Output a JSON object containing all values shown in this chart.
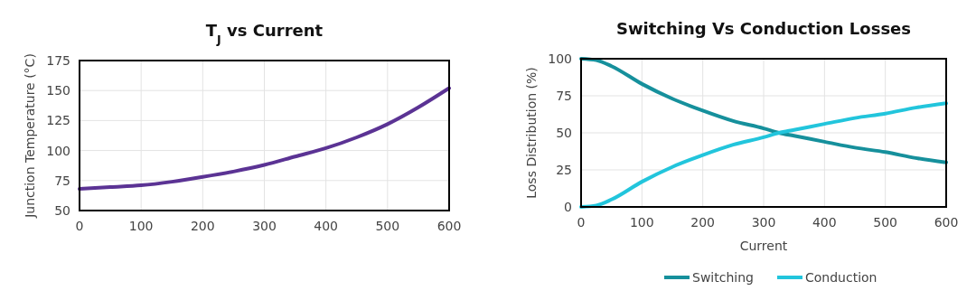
{
  "chart_data": [
    {
      "type": "line",
      "title": "T$_{J}$ vs Current",
      "ylabel": "Junction Temperature (°C)",
      "x": [
        0,
        50,
        100,
        150,
        200,
        250,
        300,
        350,
        400,
        450,
        500,
        550,
        600
      ],
      "series": [
        {
          "color": "#5b3394",
          "values": [
            68,
            69.5,
            71,
            74,
            78,
            82.5,
            88,
            95,
            102,
            111,
            122,
            136,
            152
          ]
        }
      ],
      "xlim": [
        0,
        600
      ],
      "xticks": [
        0,
        100,
        200,
        300,
        400,
        500,
        600
      ],
      "ylim": [
        50,
        175
      ],
      "yticks": [
        50,
        75,
        100,
        125,
        150,
        175
      ],
      "grid": true,
      "legend": false
    },
    {
      "type": "line",
      "title": "Switching Vs Conduction Losses",
      "xlabel": "Current",
      "ylabel": "Loss Distribution (%)",
      "x": [
        0,
        25,
        50,
        100,
        150,
        200,
        250,
        300,
        325,
        350,
        400,
        450,
        500,
        550,
        600
      ],
      "series": [
        {
          "name": "Switching",
          "color": "#16909c",
          "values": [
            100,
            99,
            95,
            83,
            73,
            65,
            58,
            53,
            50,
            48,
            44,
            40,
            37,
            33,
            30
          ]
        },
        {
          "name": "Conduction",
          "color": "#22c5dc",
          "values": [
            0,
            1,
            5,
            17,
            27,
            35,
            42,
            47,
            50,
            52,
            56,
            60,
            63,
            67,
            70
          ]
        }
      ],
      "xlim": [
        0,
        600
      ],
      "xticks": [
        0,
        100,
        200,
        300,
        400,
        500,
        600
      ],
      "ylim": [
        0,
        100
      ],
      "yticks": [
        0,
        25,
        50,
        75,
        100
      ],
      "grid": true,
      "legend": "bottom"
    }
  ]
}
